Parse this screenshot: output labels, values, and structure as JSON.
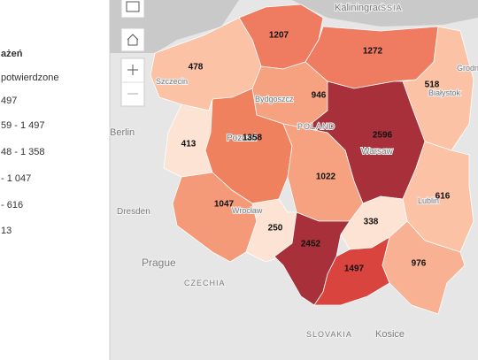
{
  "legend": {
    "title": "ażeń",
    "subtitle": "potwierdzone",
    "items": [
      "497",
      "59 - 1 497",
      "48 - 1 358",
      "- 1 047",
      "- 616",
      "13"
    ]
  },
  "map": {
    "places": [
      "Kaliningrad",
      "SSIA",
      "Szczecin",
      "Bydgoszcz",
      "POLAND",
      "Białystok",
      "Grodno",
      "Berlin",
      "Warsaw",
      "Poznań",
      "Wrocław",
      "Lublin",
      "Dresden",
      "Prague",
      "CZECHIA",
      "SLOVAKIA",
      "Kosice"
    ],
    "regions": [
      {
        "value": 1207,
        "color": "#ef7b61"
      },
      {
        "value": 1272,
        "color": "#ef7b61"
      },
      {
        "value": 478,
        "color": "#fbc2a6"
      },
      {
        "value": 946,
        "color": "#f6a180"
      },
      {
        "value": 518,
        "color": "#fbc2a6"
      },
      {
        "value": 413,
        "color": "#fde3d4"
      },
      {
        "value": 1358,
        "color": "#f0815f"
      },
      {
        "value": 2596,
        "color": "#a7303a"
      },
      {
        "value": 1022,
        "color": "#f6a180"
      },
      {
        "value": 616,
        "color": "#fbc2a6"
      },
      {
        "value": 1047,
        "color": "#f59a79"
      },
      {
        "value": 250,
        "color": "#fde3d4"
      },
      {
        "value": 338,
        "color": "#fde3d4"
      },
      {
        "value": 2452,
        "color": "#a7303a"
      },
      {
        "value": 1497,
        "color": "#d9443f"
      },
      {
        "value": 976,
        "color": "#f8b193"
      }
    ]
  }
}
